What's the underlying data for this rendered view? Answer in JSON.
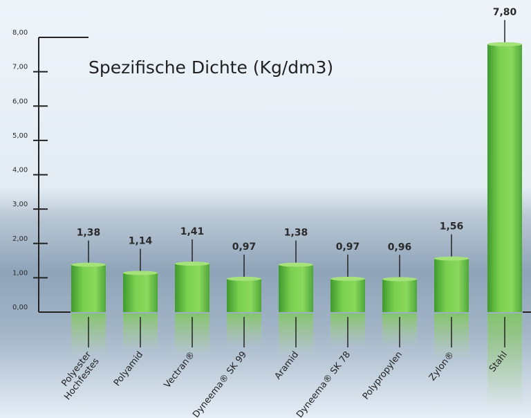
{
  "chart_data": {
    "type": "bar",
    "title": "Spezifische Dichte (Kg/dm3)",
    "xlabel": "",
    "ylabel": "",
    "ylim": [
      0,
      8
    ],
    "yticks": [
      "0,00",
      "1,00",
      "2,00",
      "3,00",
      "4,00",
      "5,00",
      "6,00",
      "7,00",
      "8,00"
    ],
    "grid": false,
    "categories": [
      [
        "Hochfestes",
        "Polyester"
      ],
      [
        "Polyamid"
      ],
      [
        "Vectran®"
      ],
      [
        "Dyneema® SK 99"
      ],
      [
        "Aramid"
      ],
      [
        "Dyneema® SK 78"
      ],
      [
        "Polypropylen"
      ],
      [
        "Zylon®"
      ],
      [
        "Stahl"
      ]
    ],
    "values": [
      1.38,
      1.14,
      1.41,
      0.97,
      1.38,
      0.97,
      0.96,
      1.56,
      7.8
    ],
    "value_labels": [
      "1,38",
      "1,14",
      "1,41",
      "0,97",
      "1,38",
      "0,97",
      "0,96",
      "1,56",
      "7,80"
    ],
    "bar_color": "#6cc04a"
  }
}
